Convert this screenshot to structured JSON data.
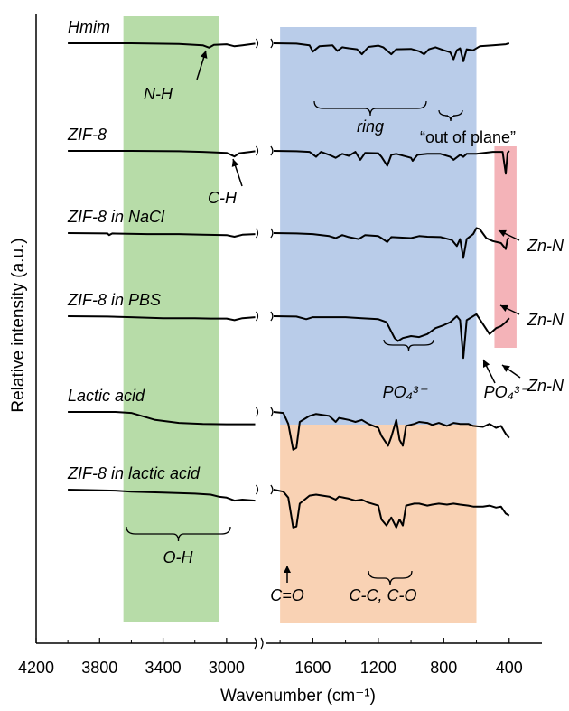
{
  "chart_data": {
    "type": "line",
    "title": "",
    "xlabel": "Wavenumber (cm⁻¹)",
    "ylabel": "Relative intensity   (a.u.)",
    "x_axis": {
      "reversed": true,
      "broken": true,
      "left_segment": {
        "from": 4200,
        "to": 2800,
        "ticks": [
          4200,
          3800,
          3400,
          3000
        ]
      },
      "right_segment": {
        "from": 1900,
        "to": 200,
        "ticks": [
          1600,
          1200,
          800,
          400
        ]
      }
    },
    "legend": "none",
    "grid": false,
    "regions": [
      {
        "name": "O-H band",
        "x_from": 3650,
        "x_to": 3050,
        "color": "#b7dca8",
        "rows": "all"
      },
      {
        "name": "ring band",
        "x_from": 1800,
        "x_to": 600,
        "color": "#b9cce9",
        "rows": "top-four"
      },
      {
        "name": "carboxyl band",
        "x_from": 1800,
        "x_to": 600,
        "color": "#f9d2b4",
        "rows": "bottom-two"
      },
      {
        "name": "Zn-N band",
        "x_from": 490,
        "x_to": 355,
        "color": "#f4b3b8",
        "rows": "middle-three"
      }
    ],
    "series": [
      {
        "name": "Hmim",
        "left": [
          [
            4000,
            0
          ],
          [
            3600,
            0
          ],
          [
            3300,
            -0.03
          ],
          [
            3150,
            -0.1
          ],
          [
            3110,
            -0.22
          ],
          [
            3080,
            -0.08
          ],
          [
            3000,
            -0.05
          ],
          [
            2950,
            -0.15
          ],
          [
            2900,
            -0.1
          ],
          [
            2820,
            -0.02
          ]
        ],
        "right": [
          [
            1840,
            0
          ],
          [
            1700,
            -0.02
          ],
          [
            1620,
            -0.1
          ],
          [
            1600,
            -0.42
          ],
          [
            1560,
            -0.15
          ],
          [
            1480,
            -0.1
          ],
          [
            1450,
            -0.38
          ],
          [
            1420,
            -0.2
          ],
          [
            1380,
            -0.25
          ],
          [
            1330,
            -0.3
          ],
          [
            1300,
            -0.55
          ],
          [
            1260,
            -0.18
          ],
          [
            1200,
            -0.12
          ],
          [
            1170,
            -0.2
          ],
          [
            1120,
            -0.55
          ],
          [
            1090,
            -0.3
          ],
          [
            1000,
            -0.28
          ],
          [
            950,
            -0.4
          ],
          [
            920,
            -0.55
          ],
          [
            890,
            -0.3
          ],
          [
            850,
            -0.2
          ],
          [
            800,
            -0.35
          ],
          [
            760,
            -0.45
          ],
          [
            740,
            -0.8
          ],
          [
            720,
            -0.35
          ],
          [
            700,
            -0.25
          ],
          [
            680,
            -0.9
          ],
          [
            660,
            -0.3
          ],
          [
            620,
            -0.35
          ],
          [
            580,
            -0.15
          ],
          [
            500,
            -0.1
          ],
          [
            420,
            -0.05
          ],
          [
            400,
            0
          ]
        ]
      },
      {
        "name": "ZIF-8",
        "left": [
          [
            4000,
            0
          ],
          [
            3600,
            0
          ],
          [
            3300,
            -0.02
          ],
          [
            3150,
            -0.05
          ],
          [
            3000,
            -0.1
          ],
          [
            2950,
            -0.28
          ],
          [
            2920,
            -0.12
          ],
          [
            2850,
            -0.05
          ],
          [
            2820,
            -0.02
          ]
        ],
        "right": [
          [
            1840,
            0
          ],
          [
            1700,
            -0.02
          ],
          [
            1620,
            -0.05
          ],
          [
            1580,
            -0.3
          ],
          [
            1550,
            -0.05
          ],
          [
            1500,
            -0.2
          ],
          [
            1460,
            -0.35
          ],
          [
            1420,
            -0.15
          ],
          [
            1380,
            -0.25
          ],
          [
            1340,
            -0.05
          ],
          [
            1310,
            -0.45
          ],
          [
            1280,
            -0.1
          ],
          [
            1200,
            -0.12
          ],
          [
            1180,
            -0.3
          ],
          [
            1145,
            -0.75
          ],
          [
            1120,
            -0.2
          ],
          [
            1090,
            -0.15
          ],
          [
            1000,
            -0.35
          ],
          [
            990,
            -0.5
          ],
          [
            960,
            -0.2
          ],
          [
            900,
            -0.15
          ],
          [
            820,
            -0.15
          ],
          [
            760,
            -0.3
          ],
          [
            740,
            -0.45
          ],
          [
            700,
            -0.2
          ],
          [
            680,
            -0.3
          ],
          [
            660,
            -0.15
          ],
          [
            600,
            -0.15
          ],
          [
            500,
            -0.05
          ],
          [
            440,
            -0.05
          ],
          [
            421,
            -1.15
          ],
          [
            410,
            -0.1
          ],
          [
            400,
            0
          ]
        ]
      },
      {
        "name": "ZIF-8 in NaCl",
        "left": [
          [
            4000,
            0
          ],
          [
            3750,
            -0.02
          ],
          [
            3740,
            -0.1
          ],
          [
            3720,
            -0.02
          ],
          [
            3500,
            -0.05
          ],
          [
            3300,
            -0.05
          ],
          [
            3150,
            -0.08
          ],
          [
            3000,
            -0.1
          ],
          [
            2950,
            -0.18
          ],
          [
            2900,
            -0.08
          ],
          [
            2820,
            -0.05
          ]
        ],
        "right": [
          [
            1840,
            0
          ],
          [
            1700,
            -0.02
          ],
          [
            1600,
            -0.05
          ],
          [
            1500,
            -0.15
          ],
          [
            1460,
            -0.25
          ],
          [
            1420,
            -0.1
          ],
          [
            1380,
            -0.2
          ],
          [
            1320,
            -0.3
          ],
          [
            1280,
            -0.1
          ],
          [
            1200,
            -0.15
          ],
          [
            1180,
            -0.25
          ],
          [
            1145,
            -0.45
          ],
          [
            1120,
            -0.2
          ],
          [
            1000,
            -0.25
          ],
          [
            950,
            -0.15
          ],
          [
            900,
            -0.18
          ],
          [
            820,
            -0.2
          ],
          [
            750,
            -0.35
          ],
          [
            720,
            -0.65
          ],
          [
            700,
            -0.3
          ],
          [
            680,
            -1.25
          ],
          [
            660,
            -0.3
          ],
          [
            620,
            -0.05
          ],
          [
            600,
            0.25
          ],
          [
            580,
            0.2
          ],
          [
            540,
            -0.25
          ],
          [
            500,
            -0.4
          ],
          [
            450,
            -0.5
          ],
          [
            421,
            -0.8
          ],
          [
            410,
            -0.3
          ],
          [
            400,
            -0.25
          ]
        ]
      },
      {
        "name": "ZIF-8 in PBS",
        "left": [
          [
            4000,
            0
          ],
          [
            3750,
            -0.02
          ],
          [
            3600,
            -0.05
          ],
          [
            3400,
            -0.1
          ],
          [
            3200,
            -0.1
          ],
          [
            3100,
            -0.12
          ],
          [
            3000,
            -0.12
          ],
          [
            2950,
            -0.2
          ],
          [
            2900,
            -0.1
          ],
          [
            2820,
            -0.05
          ]
        ],
        "right": [
          [
            1840,
            0
          ],
          [
            1700,
            -0.02
          ],
          [
            1640,
            -0.15
          ],
          [
            1600,
            -0.05
          ],
          [
            1500,
            -0.05
          ],
          [
            1400,
            -0.05
          ],
          [
            1300,
            -0.1
          ],
          [
            1200,
            -0.15
          ],
          [
            1150,
            -0.3
          ],
          [
            1100,
            -1.1
          ],
          [
            1080,
            -1.25
          ],
          [
            1050,
            -1.1
          ],
          [
            1000,
            -1.0
          ],
          [
            950,
            -1.05
          ],
          [
            900,
            -0.9
          ],
          [
            850,
            -0.6
          ],
          [
            800,
            -0.45
          ],
          [
            760,
            -0.3
          ],
          [
            720,
            0.0
          ],
          [
            700,
            -0.2
          ],
          [
            680,
            -2.1
          ],
          [
            660,
            -0.2
          ],
          [
            600,
            0.1
          ],
          [
            560,
            -0.4
          ],
          [
            520,
            -0.9
          ],
          [
            480,
            -0.6
          ],
          [
            450,
            -0.5
          ],
          [
            421,
            -0.3
          ],
          [
            400,
            -0.1
          ]
        ]
      },
      {
        "name": "Lactic acid",
        "left": [
          [
            4000,
            0
          ],
          [
            3700,
            0
          ],
          [
            3600,
            -0.05
          ],
          [
            3450,
            -0.4
          ],
          [
            3300,
            -0.55
          ],
          [
            3150,
            -0.6
          ],
          [
            3000,
            -0.62
          ],
          [
            2900,
            -0.62
          ],
          [
            2820,
            -0.62
          ]
        ],
        "right": [
          [
            1840,
            0
          ],
          [
            1780,
            -0.05
          ],
          [
            1750,
            -0.6
          ],
          [
            1720,
            -1.9
          ],
          [
            1700,
            -1.8
          ],
          [
            1680,
            -0.5
          ],
          [
            1620,
            -0.2
          ],
          [
            1580,
            -0.1
          ],
          [
            1500,
            -0.2
          ],
          [
            1460,
            -0.5
          ],
          [
            1440,
            -0.3
          ],
          [
            1380,
            -0.4
          ],
          [
            1340,
            -0.5
          ],
          [
            1300,
            -0.4
          ],
          [
            1260,
            -0.6
          ],
          [
            1200,
            -0.8
          ],
          [
            1180,
            -1.2
          ],
          [
            1140,
            -1.7
          ],
          [
            1120,
            -1.25
          ],
          [
            1090,
            -0.4
          ],
          [
            1070,
            -1.4
          ],
          [
            1050,
            -1.7
          ],
          [
            1030,
            -0.7
          ],
          [
            980,
            -0.6
          ],
          [
            950,
            -0.5
          ],
          [
            900,
            -0.55
          ],
          [
            870,
            -0.65
          ],
          [
            830,
            -0.55
          ],
          [
            780,
            -0.7
          ],
          [
            740,
            -0.55
          ],
          [
            700,
            -0.6
          ],
          [
            650,
            -0.6
          ],
          [
            620,
            -0.7
          ],
          [
            560,
            -0.75
          ],
          [
            520,
            -0.6
          ],
          [
            480,
            -0.8
          ],
          [
            450,
            -0.7
          ],
          [
            421,
            -1.1
          ],
          [
            400,
            -1.3
          ]
        ]
      },
      {
        "name": "ZIF-8 in lactic acid",
        "left": [
          [
            4000,
            0
          ],
          [
            3700,
            -0.05
          ],
          [
            3600,
            -0.1
          ],
          [
            3400,
            -0.15
          ],
          [
            3200,
            -0.2
          ],
          [
            3100,
            -0.25
          ],
          [
            3050,
            -0.35
          ],
          [
            3000,
            -0.4
          ],
          [
            2950,
            -0.55
          ],
          [
            2900,
            -0.5
          ],
          [
            2820,
            -0.55
          ]
        ],
        "right": [
          [
            1840,
            0
          ],
          [
            1780,
            -0.1
          ],
          [
            1750,
            -0.4
          ],
          [
            1720,
            -1.9
          ],
          [
            1700,
            -1.85
          ],
          [
            1680,
            -0.7
          ],
          [
            1620,
            -0.3
          ],
          [
            1580,
            -0.25
          ],
          [
            1500,
            -0.35
          ],
          [
            1460,
            -0.5
          ],
          [
            1440,
            -0.35
          ],
          [
            1380,
            -0.45
          ],
          [
            1340,
            -0.55
          ],
          [
            1300,
            -0.5
          ],
          [
            1260,
            -0.65
          ],
          [
            1200,
            -0.8
          ],
          [
            1180,
            -1.5
          ],
          [
            1150,
            -1.8
          ],
          [
            1120,
            -1.4
          ],
          [
            1090,
            -1.9
          ],
          [
            1070,
            -1.5
          ],
          [
            1050,
            -1.8
          ],
          [
            1030,
            -0.8
          ],
          [
            980,
            -0.7
          ],
          [
            950,
            -0.7
          ],
          [
            900,
            -0.8
          ],
          [
            870,
            -0.75
          ],
          [
            830,
            -0.7
          ],
          [
            780,
            -0.75
          ],
          [
            740,
            -0.7
          ],
          [
            700,
            -0.75
          ],
          [
            650,
            -0.8
          ],
          [
            620,
            -0.85
          ],
          [
            560,
            -0.85
          ],
          [
            520,
            -0.8
          ],
          [
            480,
            -0.9
          ],
          [
            450,
            -0.85
          ],
          [
            421,
            -1.2
          ],
          [
            400,
            -1.3
          ]
        ]
      }
    ],
    "annotations": [
      {
        "text": "N-H",
        "italic": true
      },
      {
        "text": "ring",
        "italic": true
      },
      {
        "text": "“out of plane”",
        "italic": false
      },
      {
        "text": "C-H",
        "italic": true
      },
      {
        "text": "Zn-N",
        "italic": true
      },
      {
        "text": "Zn-N",
        "italic": true
      },
      {
        "text": "Zn-N",
        "italic": true
      },
      {
        "text": "PO₄³⁻",
        "italic": true
      },
      {
        "text": "PO₄³⁻",
        "italic": true
      },
      {
        "text": "O-H",
        "italic": true
      },
      {
        "text": "C=O",
        "italic": true
      },
      {
        "text": "C-C, C-O",
        "italic": true
      }
    ]
  }
}
